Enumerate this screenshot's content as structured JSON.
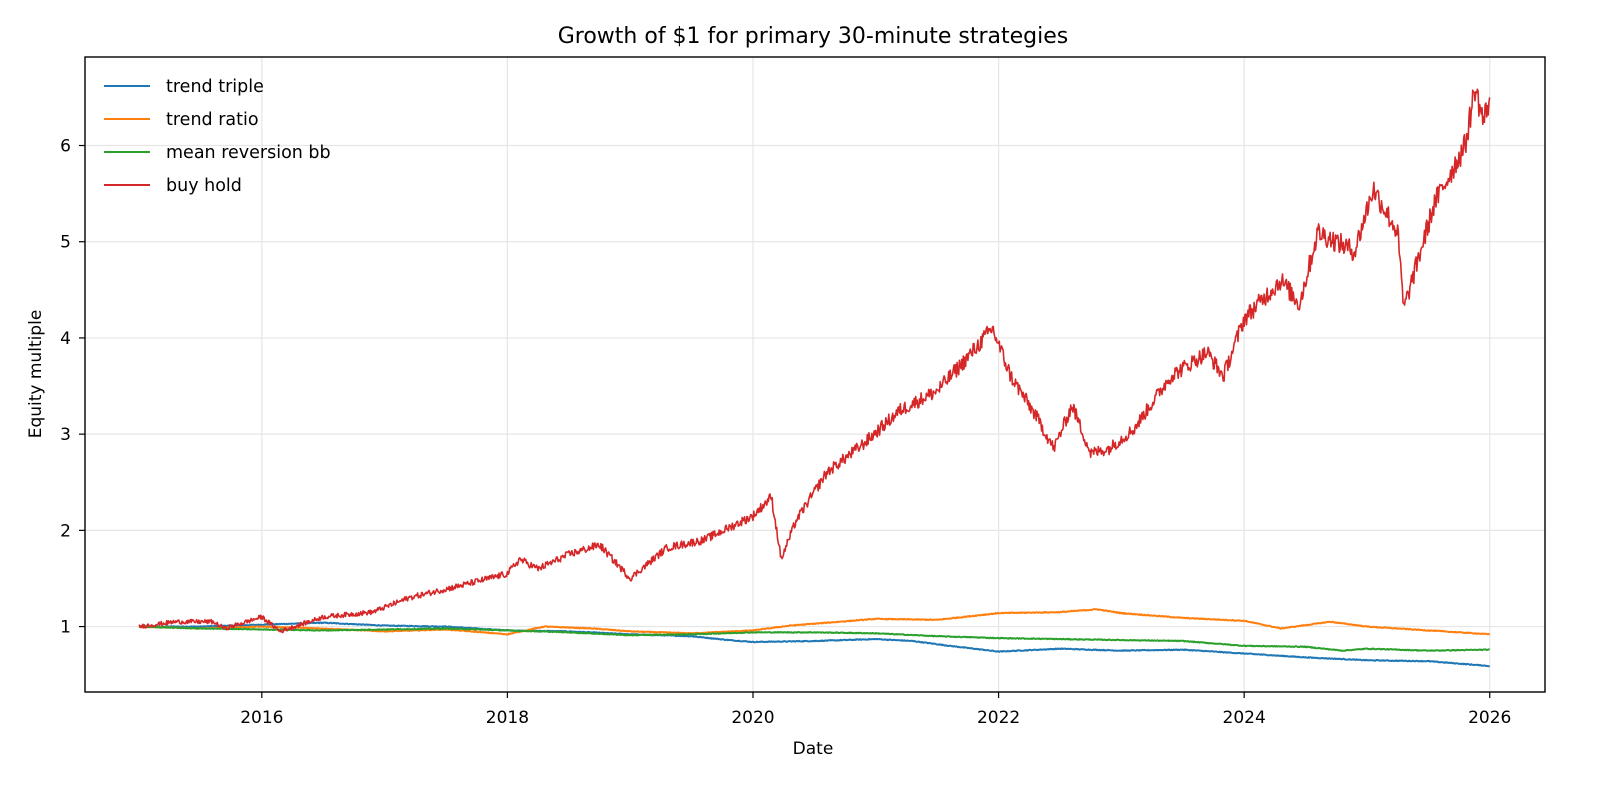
{
  "chart_data": {
    "type": "line",
    "title": "Growth of $1 for primary 30-minute strategies",
    "xlabel": "Date",
    "ylabel": "Equity multiple",
    "xlim": [
      2014.56,
      2026.45
    ],
    "ylim": [
      0.32,
      6.92
    ],
    "x_ticks": [
      2016,
      2018,
      2020,
      2022,
      2024,
      2026
    ],
    "y_ticks": [
      1,
      2,
      3,
      4,
      5,
      6
    ],
    "grid": true,
    "legend_position": "top-left",
    "series": [
      {
        "name": "trend triple",
        "color": "#1f77b4",
        "x": [
          2015.0,
          2015.5,
          2016.0,
          2016.5,
          2017.0,
          2017.5,
          2018.0,
          2018.5,
          2019.0,
          2019.5,
          2019.8,
          2020.0,
          2020.5,
          2021.0,
          2021.3,
          2021.6,
          2022.0,
          2022.5,
          2023.0,
          2023.5,
          2024.0,
          2024.5,
          2025.0,
          2025.5,
          2026.0
        ],
        "y": [
          1.0,
          1.0,
          1.02,
          1.04,
          1.01,
          1.0,
          0.96,
          0.95,
          0.92,
          0.9,
          0.86,
          0.84,
          0.85,
          0.87,
          0.85,
          0.8,
          0.74,
          0.77,
          0.75,
          0.76,
          0.72,
          0.68,
          0.65,
          0.64,
          0.59
        ]
      },
      {
        "name": "trend ratio",
        "color": "#ff7f0e",
        "x": [
          2015.0,
          2015.5,
          2016.0,
          2016.5,
          2017.0,
          2017.5,
          2018.0,
          2018.3,
          2018.7,
          2019.0,
          2019.5,
          2020.0,
          2020.3,
          2020.7,
          2021.0,
          2021.5,
          2022.0,
          2022.5,
          2022.8,
          2023.0,
          2023.5,
          2024.0,
          2024.3,
          2024.7,
          2025.0,
          2025.5,
          2026.0
        ],
        "y": [
          1.0,
          0.98,
          1.0,
          0.98,
          0.95,
          0.97,
          0.92,
          1.0,
          0.98,
          0.95,
          0.93,
          0.96,
          1.01,
          1.05,
          1.08,
          1.07,
          1.14,
          1.15,
          1.18,
          1.14,
          1.09,
          1.06,
          0.98,
          1.05,
          1.0,
          0.96,
          0.92
        ]
      },
      {
        "name": "mean reversion bb",
        "color": "#2ca02c",
        "x": [
          2015.0,
          2015.5,
          2016.0,
          2016.5,
          2017.0,
          2017.5,
          2018.0,
          2018.5,
          2019.0,
          2019.5,
          2020.0,
          2020.5,
          2021.0,
          2021.5,
          2022.0,
          2022.5,
          2023.0,
          2023.5,
          2024.0,
          2024.5,
          2024.8,
          2025.0,
          2025.5,
          2026.0
        ],
        "y": [
          1.0,
          0.98,
          0.97,
          0.96,
          0.97,
          0.98,
          0.96,
          0.94,
          0.91,
          0.92,
          0.94,
          0.94,
          0.93,
          0.9,
          0.88,
          0.87,
          0.86,
          0.85,
          0.8,
          0.79,
          0.75,
          0.77,
          0.75,
          0.76
        ]
      },
      {
        "name": "buy hold",
        "color": "#d62728",
        "x": [
          2015.0,
          2015.3,
          2015.6,
          2015.7,
          2016.0,
          2016.15,
          2016.5,
          2016.9,
          2017.2,
          2017.6,
          2018.0,
          2018.1,
          2018.25,
          2018.5,
          2018.75,
          2019.0,
          2019.3,
          2019.6,
          2020.0,
          2020.15,
          2020.23,
          2020.35,
          2020.6,
          2020.9,
          2021.2,
          2021.5,
          2021.75,
          2021.95,
          2022.1,
          2022.3,
          2022.45,
          2022.6,
          2022.75,
          2022.9,
          2023.1,
          2023.4,
          2023.7,
          2023.83,
          2024.0,
          2024.3,
          2024.45,
          2024.6,
          2024.9,
          2025.05,
          2025.25,
          2025.3,
          2025.55,
          2025.8,
          2025.88,
          2025.95,
          2026.0
        ],
        "y": [
          1.0,
          1.05,
          1.05,
          0.98,
          1.1,
          0.95,
          1.1,
          1.15,
          1.3,
          1.42,
          1.55,
          1.7,
          1.6,
          1.75,
          1.85,
          1.5,
          1.82,
          1.9,
          2.15,
          2.35,
          1.7,
          2.1,
          2.6,
          2.9,
          3.25,
          3.45,
          3.8,
          4.1,
          3.6,
          3.2,
          2.85,
          3.3,
          2.8,
          2.85,
          3.05,
          3.6,
          3.85,
          3.6,
          4.2,
          4.6,
          4.35,
          5.1,
          4.9,
          5.55,
          5.1,
          4.3,
          5.4,
          6.0,
          6.6,
          6.25,
          6.5
        ]
      }
    ]
  }
}
